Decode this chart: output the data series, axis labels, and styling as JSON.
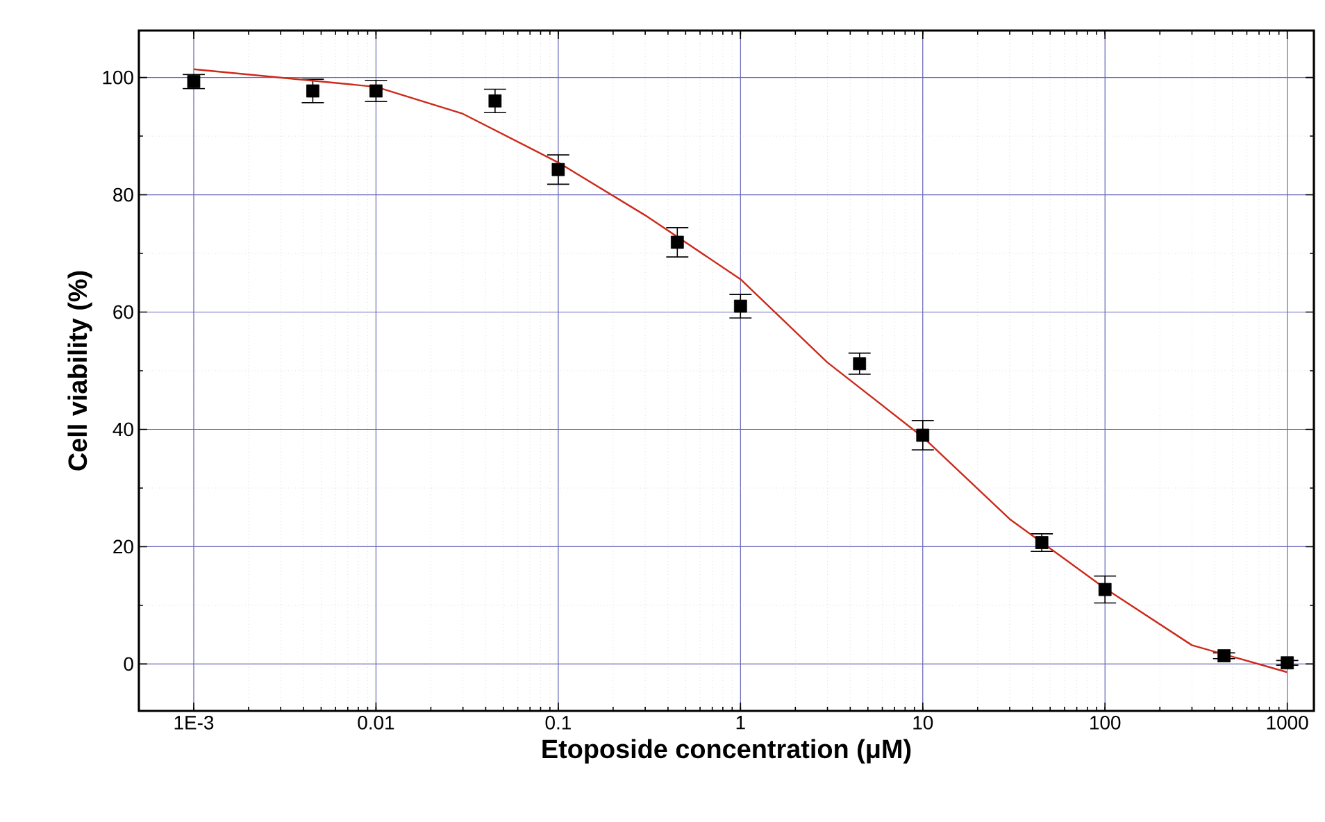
{
  "chart_data": {
    "type": "scatter",
    "xlabel": "Etoposide concentration (μM)",
    "ylabel": "Cell viability (%)",
    "log": "x",
    "grid": true,
    "xlim": [
      0.0005,
      1400
    ],
    "ylim": [
      -8,
      108
    ],
    "xticks": [
      {
        "value": 0.001,
        "label": "1E-3"
      },
      0.01,
      0.1,
      1,
      10,
      100,
      1000
    ],
    "yticks": [
      0,
      20,
      40,
      60,
      80,
      100
    ],
    "series": [
      {
        "color": "#000000",
        "marker": "square",
        "x": [
          0.001,
          0.0045,
          0.01,
          0.045,
          0.1,
          0.45,
          1,
          4.5,
          10,
          45,
          100,
          450,
          1000
        ],
        "values": [
          99.3,
          97.7,
          97.7,
          96,
          84.3,
          71.9,
          61,
          51.2,
          39,
          20.7,
          12.7,
          1.4,
          0.2
        ],
        "errors": [
          1.2,
          2,
          1.8,
          2,
          2.5,
          2.5,
          2,
          1.8,
          2.5,
          1.5,
          2.3,
          0.5,
          0.4
        ]
      },
      {
        "type": "line",
        "color": "#cc2a1a",
        "marker": "none",
        "line_style": "solid",
        "x": [
          0.001,
          0.01,
          0.03,
          0.1,
          0.3,
          1,
          3,
          10,
          30,
          100,
          300,
          1000
        ],
        "values": [
          101.4,
          98.4,
          93.8,
          85.5,
          76.5,
          65.6,
          51.4,
          38.7,
          24.7,
          12.9,
          3.2,
          -1.4
        ]
      }
    ]
  }
}
